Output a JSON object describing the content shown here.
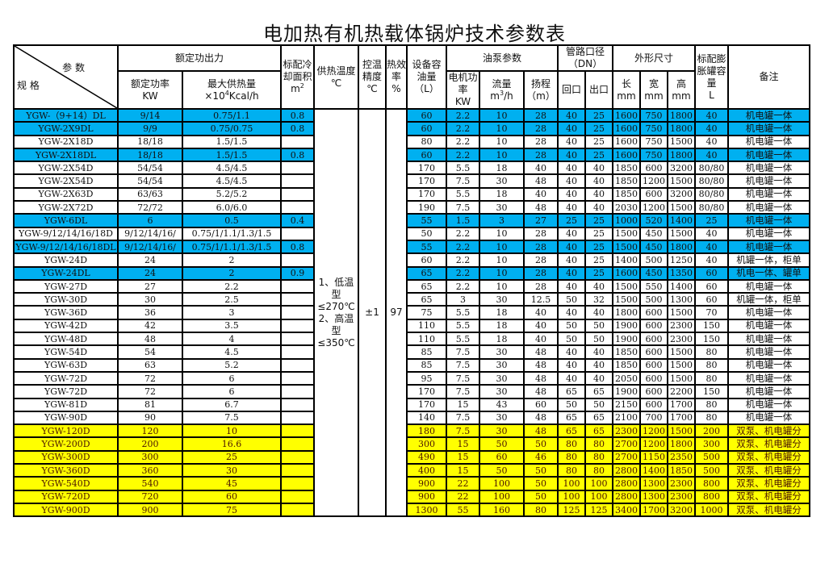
{
  "title": "电加热有机热载体锅炉技术参数表",
  "colors": {
    "blue": "#00b0f0",
    "yellow": "#ffff00"
  },
  "header": {
    "param": "参 数",
    "spec": "规 格",
    "rated_output": "额定功出力",
    "rated_power": "额定功率",
    "rated_power_unit": "KW",
    "max_heat": "最大供热量",
    "max_heat_unit_pre": "×10",
    "max_heat_unit_sup": "4",
    "max_heat_unit_post": "Kcal/h",
    "cooling_area": "标配冷却面积",
    "cooling_area_unit": "m",
    "cooling_area_sup": "2",
    "supply_temp": "供热温度",
    "supply_temp_unit": "℃",
    "temp_precision": "控温精度",
    "temp_precision_unit": "℃",
    "efficiency": "热效率",
    "efficiency_unit": "%",
    "oil_capacity": "设备容油量",
    "oil_capacity_unit": "（L）",
    "pump_params": "油泵参数",
    "motor_power": "电机功率",
    "motor_power_unit": "KW",
    "flow": "流量",
    "flow_unit_pre": "m",
    "flow_unit_sup": "3",
    "flow_unit_post": "/h",
    "head": "扬程",
    "head_unit": "（m）",
    "pipe_diameter": "管路口径（DN）",
    "return_port": "回口",
    "outlet_port": "出口",
    "dimensions": "外形尺寸",
    "length": "长",
    "width": "宽",
    "height": "高",
    "mm": "mm",
    "tank": "标配膨胀罐容量",
    "tank_unit": "L",
    "remarks": "备注"
  },
  "shared": {
    "supply_temp": "1、低温型≤270℃ 2、高温型≤350℃",
    "temp_precision": "±1",
    "efficiency": "97"
  },
  "columns": [
    "spec",
    "rated_power",
    "max_heat",
    "cooling_area",
    "oil_capacity",
    "motor_power",
    "flow",
    "head",
    "return_port",
    "outlet_port",
    "length",
    "width",
    "height",
    "tank",
    "remarks"
  ],
  "rows": [
    {
      "highlight": "blue",
      "cells": [
        "YGW-（9+14）DL",
        "9/14",
        "0.75/1.1",
        "0.8",
        "60",
        "2.2",
        "10",
        "28",
        "40",
        "25",
        "1600",
        "750",
        "1800",
        "40",
        "机电罐一体"
      ]
    },
    {
      "highlight": "blue",
      "cells": [
        "YGW-2X9DL",
        "9/9",
        "0.75/0.75",
        "0.8",
        "60",
        "2.2",
        "10",
        "28",
        "40",
        "25",
        "1600",
        "750",
        "1800",
        "40",
        "机电罐一体"
      ]
    },
    {
      "highlight": "",
      "cells": [
        "YGW-2X18D",
        "18/18",
        "1.5/1.5",
        "",
        "80",
        "2.2",
        "10",
        "28",
        "40",
        "25",
        "1600",
        "750",
        "1500",
        "40",
        "机电罐一体"
      ]
    },
    {
      "highlight": "blue",
      "cells": [
        "YGW-2X18DL",
        "18/18",
        "1.5/1.5",
        "0.8",
        "60",
        "2.2",
        "10",
        "28",
        "40",
        "25",
        "1600",
        "750",
        "1800",
        "40",
        "机电罐一体"
      ]
    },
    {
      "highlight": "",
      "cells": [
        "YGW-2X54D",
        "54/54",
        "4.5/4.5",
        "",
        "170",
        "5.5",
        "18",
        "40",
        "40",
        "40",
        "1850",
        "600",
        "3200",
        "80/80",
        "机电罐一体"
      ]
    },
    {
      "highlight": "",
      "cells": [
        "YGW-2X54D",
        "54/54",
        "4.5/4.5",
        "",
        "170",
        "7.5",
        "30",
        "48",
        "40",
        "40",
        "1850",
        "1200",
        "1500",
        "80/80",
        "机电罐一体"
      ]
    },
    {
      "highlight": "",
      "cells": [
        "YGW-2X63D",
        "63/63",
        "5.2/5.2",
        "",
        "170",
        "5.5",
        "18",
        "40",
        "40",
        "40",
        "1850",
        "600",
        "3200",
        "80/80",
        "机电罐一体"
      ]
    },
    {
      "highlight": "",
      "cells": [
        "YGW-2X72D",
        "72/72",
        "6.0/6.0",
        "",
        "190",
        "7.5",
        "30",
        "48",
        "40",
        "40",
        "2030",
        "1200",
        "1500",
        "80/80",
        "机电罐一体"
      ]
    },
    {
      "highlight": "blue",
      "cells": [
        "YGW-6DL",
        "6",
        "0.5",
        "0.4",
        "55",
        "1.5",
        "3",
        "27",
        "25",
        "25",
        "1000",
        "520",
        "1400",
        "25",
        "机电罐一体"
      ]
    },
    {
      "highlight": "",
      "cells": [
        "YGW-9/12/14/16/18D",
        "9/12/14/16/",
        "0.75/1/1.1/1.3/1.5",
        "",
        "50",
        "2.2",
        "10",
        "28",
        "40",
        "25",
        "1500",
        "450",
        "1500",
        "40",
        "机电罐一体"
      ]
    },
    {
      "highlight": "blue",
      "cells": [
        "YGW-9/12/14/16/18DL",
        "9/12/14/16/",
        "0.75/1/1.1/1.3/1.5",
        "0.8",
        "55",
        "2.2",
        "10",
        "28",
        "40",
        "25",
        "1500",
        "450",
        "1800",
        "40",
        "机电罐一体"
      ]
    },
    {
      "highlight": "",
      "cells": [
        "YGW-24D",
        "24",
        "2",
        "",
        "60",
        "2.2",
        "10",
        "28",
        "40",
        "25",
        "1400",
        "500",
        "1250",
        "40",
        "机罐一体，柜单"
      ]
    },
    {
      "highlight": "blue",
      "cells": [
        "YGW-24DL",
        "24",
        "2",
        "0.9",
        "65",
        "2.2",
        "10",
        "28",
        "40",
        "25",
        "1600",
        "450",
        "1350",
        "60",
        "机电一体、罐单"
      ]
    },
    {
      "highlight": "",
      "cells": [
        "YGW-27D",
        "27",
        "2.2",
        "",
        "65",
        "2.2",
        "10",
        "28",
        "40",
        "40",
        "1500",
        "550",
        "1400",
        "60",
        "机电罐一体"
      ]
    },
    {
      "highlight": "",
      "cells": [
        "YGW-30D",
        "30",
        "2.5",
        "",
        "65",
        "3",
        "30",
        "12.5",
        "50",
        "32",
        "1500",
        "500",
        "1300",
        "60",
        "机罐一体，柜单"
      ]
    },
    {
      "highlight": "",
      "cells": [
        "YGW-36D",
        "36",
        "3",
        "",
        "75",
        "5.5",
        "18",
        "40",
        "40",
        "40",
        "1800",
        "600",
        "1500",
        "70",
        "机电罐一体"
      ]
    },
    {
      "highlight": "",
      "cells": [
        "YGW-42D",
        "42",
        "3.5",
        "",
        "110",
        "5.5",
        "18",
        "40",
        "50",
        "50",
        "1900",
        "600",
        "2300",
        "150",
        "机电罐一体"
      ]
    },
    {
      "highlight": "",
      "cells": [
        "YGW-48D",
        "48",
        "4",
        "",
        "110",
        "5.5",
        "18",
        "40",
        "50",
        "50",
        "1900",
        "600",
        "2300",
        "150",
        "机电罐一体"
      ]
    },
    {
      "highlight": "",
      "cells": [
        "YGW-54D",
        "54",
        "4.5",
        "",
        "85",
        "7.5",
        "30",
        "48",
        "40",
        "40",
        "1850",
        "600",
        "1500",
        "80",
        "机电罐一体"
      ]
    },
    {
      "highlight": "",
      "cells": [
        "YGW-63D",
        "63",
        "5.2",
        "",
        "85",
        "7.5",
        "30",
        "48",
        "40",
        "40",
        "1850",
        "600",
        "1500",
        "80",
        "机电罐一体"
      ]
    },
    {
      "highlight": "",
      "cells": [
        "YGW-72D",
        "72",
        "6",
        "",
        "95",
        "7.5",
        "30",
        "48",
        "40",
        "40",
        "2050",
        "600",
        "1500",
        "80",
        "机电罐一体"
      ]
    },
    {
      "highlight": "",
      "cells": [
        "YGW-72D",
        "72",
        "6",
        "",
        "170",
        "7.5",
        "30",
        "48",
        "65",
        "65",
        "1900",
        "600",
        "2200",
        "150",
        "机电罐一体"
      ]
    },
    {
      "highlight": "",
      "cells": [
        "YGW-81D",
        "81",
        "6.7",
        "",
        "170",
        "15",
        "43",
        "60",
        "50",
        "50",
        "2150",
        "600",
        "1700",
        "80",
        "机电罐一体"
      ]
    },
    {
      "highlight": "",
      "cells": [
        "YGW-90D",
        "90",
        "7.5",
        "",
        "140",
        "7.5",
        "30",
        "48",
        "65",
        "65",
        "2100",
        "700",
        "1700",
        "80",
        "机电罐一体"
      ]
    },
    {
      "highlight": "yellow",
      "cells": [
        "YGW-120D",
        "120",
        "10",
        "",
        "180",
        "7.5",
        "30",
        "48",
        "65",
        "65",
        "2300",
        "1200",
        "1500",
        "200",
        "双泵、机电罐分"
      ]
    },
    {
      "highlight": "yellow",
      "cells": [
        "YGW-200D",
        "200",
        "16.6",
        "",
        "300",
        "15",
        "50",
        "50",
        "80",
        "80",
        "2700",
        "1200",
        "1800",
        "300",
        "双泵、机电罐分"
      ]
    },
    {
      "highlight": "yellow",
      "cells": [
        "YGW-300D",
        "300",
        "25",
        "",
        "490",
        "15",
        "60",
        "46",
        "80",
        "80",
        "2700",
        "1150",
        "2350",
        "500",
        "双泵、机电罐分"
      ]
    },
    {
      "highlight": "yellow",
      "cells": [
        "YGW-360D",
        "360",
        "30",
        "",
        "400",
        "15",
        "50",
        "50",
        "80",
        "80",
        "2800",
        "1400",
        "1850",
        "500",
        "双泵、机电罐分"
      ]
    },
    {
      "highlight": "yellow",
      "cells": [
        "YGW-540D",
        "540",
        "45",
        "",
        "900",
        "22",
        "100",
        "50",
        "100",
        "100",
        "2800",
        "1300",
        "2300",
        "800",
        "双泵、机电罐分"
      ]
    },
    {
      "highlight": "yellow",
      "cells": [
        "YGW-720D",
        "720",
        "60",
        "",
        "900",
        "22",
        "100",
        "50",
        "100",
        "100",
        "2800",
        "1300",
        "2300",
        "800",
        "双泵、机电罐分"
      ]
    },
    {
      "highlight": "yellow",
      "cells": [
        "YGW-900D",
        "900",
        "75",
        "",
        "1300",
        "55",
        "160",
        "80",
        "125",
        "125",
        "3400",
        "1700",
        "3200",
        "1000",
        "双泵、机电罐分"
      ]
    }
  ]
}
